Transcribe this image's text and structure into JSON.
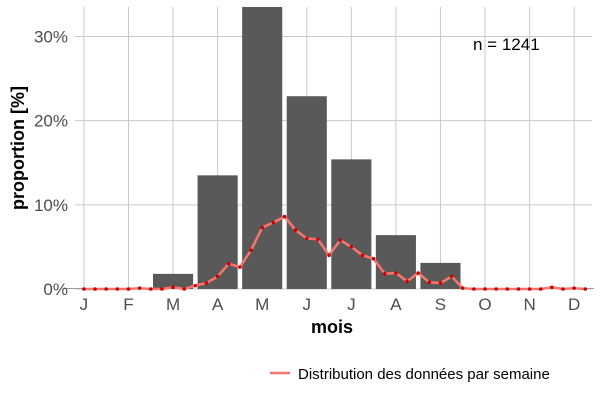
{
  "chart_data": {
    "type": "bar",
    "categories": [
      "J",
      "F",
      "M",
      "A",
      "M",
      "J",
      "J",
      "A",
      "S",
      "O",
      "N",
      "D"
    ],
    "values": [
      0.0,
      0.1,
      1.8,
      13.5,
      33.5,
      22.9,
      15.4,
      6.4,
      3.1,
      0.0,
      0.0,
      0.0
    ],
    "series": [
      {
        "name": "Distribution des données par semaine",
        "type": "line",
        "x": [
          1.0,
          1.25,
          1.5,
          1.75,
          2.0,
          2.25,
          2.5,
          2.75,
          3.0,
          3.25,
          3.5,
          3.75,
          4.0,
          4.25,
          4.5,
          4.75,
          5.0,
          5.25,
          5.5,
          5.75,
          6.0,
          6.25,
          6.5,
          6.75,
          7.0,
          7.25,
          7.5,
          7.75,
          8.0,
          8.25,
          8.5,
          8.75,
          9.0,
          9.25,
          9.5,
          9.75,
          10.0,
          10.25,
          10.5,
          10.75,
          11.0,
          11.25,
          11.5,
          11.75,
          12.0,
          12.25
        ],
        "values": [
          0.0,
          0.0,
          0.0,
          0.0,
          0.0,
          0.1,
          0.0,
          0.0,
          0.2,
          0.0,
          0.4,
          0.7,
          1.5,
          3.0,
          2.6,
          4.6,
          7.3,
          7.9,
          8.6,
          7.0,
          6.0,
          5.9,
          4.0,
          5.8,
          5.0,
          4.0,
          3.6,
          1.8,
          1.9,
          0.9,
          1.9,
          0.8,
          0.7,
          1.5,
          0.1,
          0.0,
          0.0,
          0.0,
          0.0,
          0.0,
          0.0,
          0.0,
          0.2,
          0.0,
          0.1,
          0.0
        ],
        "color": "#f8766d",
        "point_color": "#cc0000"
      }
    ],
    "xlabel": "mois",
    "ylabel": "proportion [%]",
    "ylim": [
      0,
      33.5
    ],
    "yticks": [
      0,
      10,
      20,
      30
    ],
    "ytick_labels": [
      "0%",
      "10%",
      "20%",
      "30%"
    ],
    "annotation": "n = 1241",
    "bar_color": "#595959",
    "grid": true,
    "legend_position": "bottom-right"
  }
}
